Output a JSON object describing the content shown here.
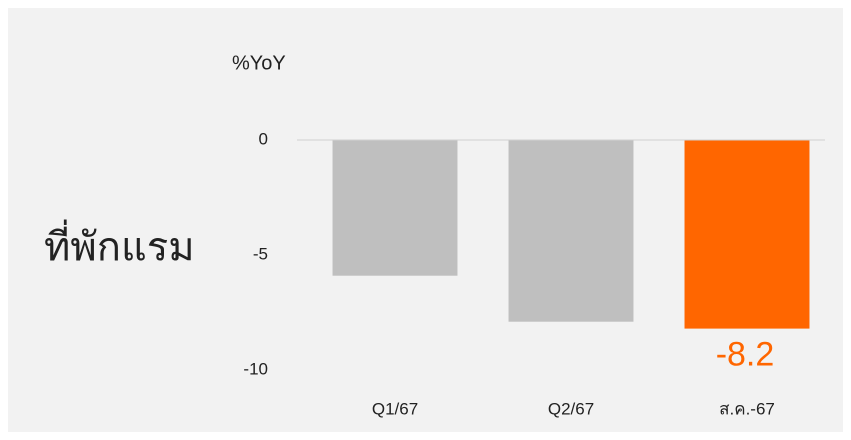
{
  "chart_data": {
    "type": "bar",
    "title": "ที่พักแรม",
    "ylabel": "%YoY",
    "categories": [
      "Q1/67",
      "Q2/67",
      "ส.ค.-67"
    ],
    "values": [
      -5.9,
      -7.9,
      -8.2
    ],
    "value_labels": [
      null,
      null,
      "-8.2"
    ],
    "colors": [
      "#bfbfbf",
      "#bfbfbf",
      "#ff6600"
    ],
    "ylim": [
      -10,
      0
    ],
    "yticks": [
      0,
      -5,
      -10
    ],
    "grid": false
  }
}
